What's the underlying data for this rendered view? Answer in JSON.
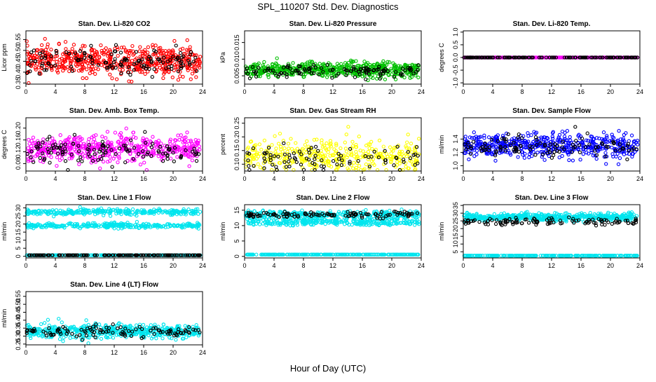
{
  "figure": {
    "title": "SPL_110207  Std. Dev. Diagnostics",
    "xlabel": "Hour of Day (UTC)"
  },
  "chart_data": [
    {
      "type": "scatter",
      "title": "Stan. Dev. Li-820 CO2",
      "ylabel": "Licor ppm",
      "xlim": [
        0,
        24
      ],
      "ylim": [
        0.345,
        0.59
      ],
      "xticks": [
        0,
        4,
        8,
        12,
        16,
        20,
        24
      ],
      "yticks": [
        0.35,
        0.4,
        0.45,
        0.5,
        0.55
      ],
      "ytick_labels": [
        "0.35",
        "0.40",
        "0.45",
        "0.50",
        "0.55"
      ],
      "primary_color": "#ff0000",
      "secondary_color": "#000000",
      "series": [
        {
          "role": "primary",
          "n": 560,
          "center": 0.452,
          "spread": 0.033
        },
        {
          "role": "secondary",
          "n": 130,
          "center": 0.45,
          "spread": 0.03
        }
      ]
    },
    {
      "type": "scatter",
      "title": "Stan. Dev. Li-820 Pressure",
      "ylabel": "kPa",
      "xlim": [
        0,
        24
      ],
      "ylim": [
        0.0025,
        0.0185
      ],
      "xticks": [
        0,
        4,
        8,
        12,
        16,
        20,
        24
      ],
      "yticks": [
        0.005,
        0.01,
        0.015
      ],
      "ytick_labels": [
        "0.005",
        "0.010",
        "0.015"
      ],
      "primary_color": "#00c000",
      "secondary_color": "#000000",
      "series": [
        {
          "role": "primary",
          "n": 560,
          "center": 0.0068,
          "spread": 0.0011
        },
        {
          "role": "secondary",
          "n": 120,
          "center": 0.0063,
          "spread": 0.0009
        }
      ]
    },
    {
      "type": "scatter",
      "title": "Stan. Dev. Li-820 Temp.",
      "ylabel": "degrees C",
      "xlim": [
        0,
        24
      ],
      "ylim": [
        -1.05,
        1.05
      ],
      "xticks": [
        0,
        4,
        8,
        12,
        16,
        20,
        24
      ],
      "yticks": [
        -1.0,
        -0.5,
        0.0,
        0.5,
        1.0
      ],
      "ytick_labels": [
        "-1.0",
        "-0.5",
        "0.0",
        "0.5",
        "1.0"
      ],
      "primary_color": "#ff00ff",
      "secondary_color": "#000000",
      "series": [
        {
          "role": "primary",
          "n": 300,
          "center": 0.0,
          "spread": 0.0
        },
        {
          "role": "secondary",
          "n": 150,
          "center": 0.0,
          "spread": 0.0
        }
      ]
    },
    {
      "type": "scatter",
      "title": "Stan. Dev. Amb. Box Temp.",
      "ylabel": "degrees C",
      "xlim": [
        0,
        24
      ],
      "ylim": [
        0.055,
        0.235
      ],
      "xticks": [
        0,
        4,
        8,
        12,
        16,
        20,
        24
      ],
      "yticks": [
        0.08,
        0.12,
        0.16,
        0.2
      ],
      "ytick_labels": [
        "0.08",
        "0.12",
        "0.16",
        "0.20"
      ],
      "primary_color": "#ff00ff",
      "secondary_color": "#000000",
      "series": [
        {
          "role": "primary",
          "n": 520,
          "center": 0.13,
          "spread": 0.022
        },
        {
          "role": "secondary",
          "n": 120,
          "center": 0.125,
          "spread": 0.022
        }
      ]
    },
    {
      "type": "scatter",
      "title": "Stan. Dev. Gas Stream RH",
      "ylabel": "percent",
      "xlim": [
        0,
        24
      ],
      "ylim": [
        0.075,
        0.27
      ],
      "xticks": [
        0,
        4,
        8,
        12,
        16,
        20,
        24
      ],
      "yticks": [
        0.1,
        0.15,
        0.2,
        0.25
      ],
      "ytick_labels": [
        "0.10",
        "0.15",
        "0.20",
        "0.25"
      ],
      "primary_color": "#ffff00",
      "secondary_color": "#000000",
      "series": [
        {
          "role": "primary",
          "n": 380,
          "center": 0.13,
          "spread": 0.03
        },
        {
          "role": "secondary",
          "n": 90,
          "center": 0.12,
          "spread": 0.025
        }
      ]
    },
    {
      "type": "scatter",
      "title": "Stan. Dev. Sample Flow",
      "ylabel": "ml/min",
      "xlim": [
        0,
        24
      ],
      "ylim": [
        0.92,
        1.72
      ],
      "xticks": [
        0,
        4,
        8,
        12,
        16,
        20,
        24
      ],
      "yticks": [
        1.0,
        1.2,
        1.4
      ],
      "ytick_labels": [
        "1.0",
        "1.2",
        "1.4"
      ],
      "primary_color": "#0000ff",
      "secondary_color": "#000000",
      "series": [
        {
          "role": "primary",
          "n": 520,
          "center": 1.3,
          "spread": 0.09
        },
        {
          "role": "secondary",
          "n": 110,
          "center": 1.28,
          "spread": 0.08
        }
      ]
    },
    {
      "type": "scatter",
      "title": "Stan. Dev. Line 1 Flow",
      "ylabel": "ml/min",
      "xlim": [
        0,
        24
      ],
      "ylim": [
        -1,
        32
      ],
      "xticks": [
        0,
        4,
        8,
        12,
        16,
        20,
        24
      ],
      "yticks": [
        0,
        5,
        10,
        15,
        20,
        25,
        30
      ],
      "ytick_labels": [
        "0",
        "5",
        "10",
        "15",
        "20",
        "25",
        "30"
      ],
      "primary_color": "#00e5ee",
      "secondary_color": "#000000",
      "series": [
        {
          "role": "primary",
          "n": 300,
          "center": 27.5,
          "spread": 0.9
        },
        {
          "role": "primary",
          "n": 300,
          "center": 19.0,
          "spread": 0.8
        },
        {
          "role": "primary",
          "n": 250,
          "center": 0.7,
          "spread": 0.0
        },
        {
          "role": "secondary",
          "n": 140,
          "center": 0.7,
          "spread": 0.0
        }
      ]
    },
    {
      "type": "scatter",
      "title": "Stan. Dev. Line 2 Flow",
      "ylabel": "ml/min",
      "xlim": [
        0,
        24
      ],
      "ylim": [
        -0.5,
        16.8
      ],
      "xticks": [
        0,
        4,
        8,
        12,
        16,
        20,
        24
      ],
      "yticks": [
        0,
        5,
        10,
        15
      ],
      "ytick_labels": [
        "0",
        "5",
        "10",
        "15"
      ],
      "primary_color": "#00e5ee",
      "secondary_color": "#000000",
      "series": [
        {
          "role": "primary",
          "n": 300,
          "center": 13.6,
          "spread": 0.6
        },
        {
          "role": "primary",
          "n": 300,
          "center": 11.2,
          "spread": 0.6
        },
        {
          "role": "primary",
          "n": 250,
          "center": 0.6,
          "spread": 0.0
        },
        {
          "role": "secondary",
          "n": 110,
          "center": 13.5,
          "spread": 0.5
        }
      ]
    },
    {
      "type": "scatter",
      "title": "Stan. Dev. Line 3 Flow",
      "ylabel": "ml/min",
      "xlim": [
        0,
        24
      ],
      "ylim": [
        1,
        35.5
      ],
      "xticks": [
        0,
        4,
        8,
        12,
        16,
        20,
        24
      ],
      "yticks": [
        5,
        10,
        15,
        20,
        25,
        30,
        35
      ],
      "ytick_labels": [
        "5",
        "10",
        "15",
        "20",
        "25",
        "30",
        "35"
      ],
      "primary_color": "#00e5ee",
      "secondary_color": "#000000",
      "series": [
        {
          "role": "primary",
          "n": 500,
          "center": 27.5,
          "spread": 1.2
        },
        {
          "role": "primary",
          "n": 250,
          "center": 2.5,
          "spread": 0.0
        },
        {
          "role": "secondary",
          "n": 110,
          "center": 24.5,
          "spread": 1.0
        }
      ]
    },
    {
      "type": "scatter",
      "title": "Stan. Dev. Line 4 (LT) Flow",
      "ylabel": "ml/min",
      "xlim": [
        0,
        24
      ],
      "ylim": [
        0.245,
        0.58
      ],
      "xticks": [
        0,
        4,
        8,
        12,
        16,
        20,
        24
      ],
      "yticks": [
        0.25,
        0.3,
        0.35,
        0.4,
        0.45,
        0.5,
        0.55
      ],
      "ytick_labels": [
        "0.25",
        "0.30",
        "0.35",
        "0.40",
        "0.45",
        "0.50",
        "0.55"
      ],
      "primary_color": "#00e5ee",
      "secondary_color": "#000000",
      "series": [
        {
          "role": "primary",
          "n": 520,
          "center": 0.33,
          "spread": 0.022
        },
        {
          "role": "secondary",
          "n": 110,
          "center": 0.33,
          "spread": 0.018
        }
      ]
    }
  ]
}
